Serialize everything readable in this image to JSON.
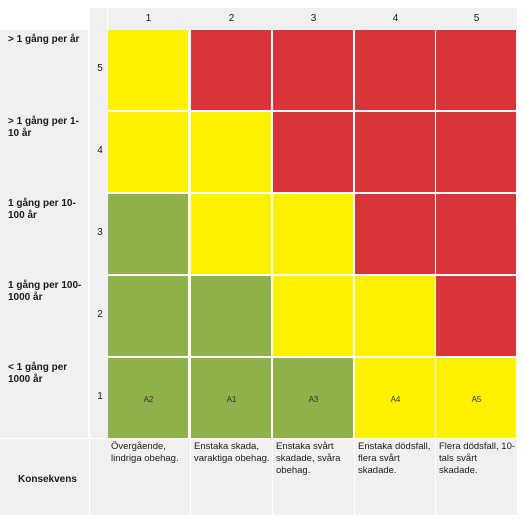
{
  "colors": {
    "red": "#d9343a",
    "yellow": "#fff200",
    "green": "#8fb04a",
    "header_bg": "#f0f0f0"
  },
  "columns": [
    "1",
    "2",
    "3",
    "4",
    "5"
  ],
  "rows": [
    {
      "label": "> 1 gång per år",
      "number": "5",
      "cells": [
        "yellow",
        "red",
        "red",
        "red",
        "red"
      ]
    },
    {
      "label": "> 1 gång per 1-10 år",
      "number": "4",
      "cells": [
        "yellow",
        "yellow",
        "red",
        "red",
        "red"
      ]
    },
    {
      "label": "1 gång per 10-100 år",
      "number": "3",
      "cells": [
        "green",
        "yellow",
        "yellow",
        "red",
        "red"
      ]
    },
    {
      "label": "1 gång per 100-1000 år",
      "number": "2",
      "cells": [
        "green",
        "green",
        "yellow",
        "yellow",
        "red"
      ]
    },
    {
      "label": "< 1 gång per 1000 år",
      "number": "1",
      "cells": [
        "green",
        "green",
        "green",
        "yellow",
        "yellow"
      ],
      "codes": [
        "A2",
        "A1",
        "A3",
        "A4",
        "A5"
      ]
    }
  ],
  "consequence_title": "Konsekvens",
  "consequences": [
    "Övergående, lindriga obehag.",
    "Enstaka skada, varaktiga obehag.",
    "Enstaka svårt skadade, svåra obehag.",
    "Enstaka dödsfall, flera svårt skadade.",
    "Flera dödsfall, 10-tals svårt skadade."
  ]
}
